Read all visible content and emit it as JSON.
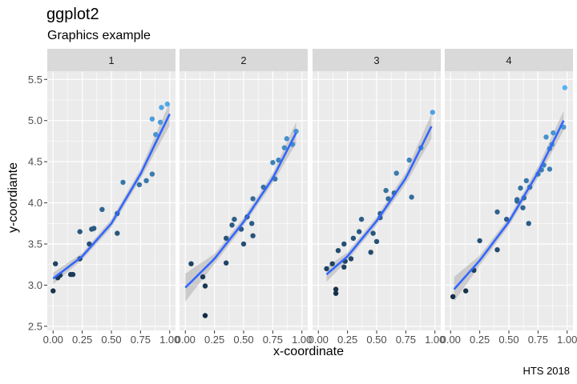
{
  "chart_data": {
    "type": "scatter",
    "title": "ggplot2",
    "subtitle": "Graphics example",
    "xlabel": "x-coordinate",
    "ylabel": "y-coordiante",
    "caption": "HTS 2018",
    "xlim": [
      -0.05,
      1.05
    ],
    "ylim": [
      2.45,
      5.6
    ],
    "xticks": [
      0.0,
      0.25,
      0.5,
      0.75,
      1.0
    ],
    "xtick_labels": [
      "0.00",
      "0.25",
      "0.50",
      "0.75",
      "1.00"
    ],
    "yticks": [
      2.5,
      3.0,
      3.5,
      4.0,
      4.5,
      5.0,
      5.5
    ],
    "ytick_labels": [
      "2.5",
      "3.0",
      "3.5",
      "4.0",
      "4.5",
      "5.0",
      "5.5"
    ],
    "grid": true,
    "smooth": "loess fit with confidence band",
    "color_scale": {
      "low": "#132B43",
      "high": "#56B1F7"
    },
    "line_color": "#3366FF",
    "band_color": "#999999",
    "panels": [
      {
        "label": "1",
        "fit": [
          [
            0.0,
            3.08
          ],
          [
            0.25,
            3.35
          ],
          [
            0.5,
            3.75
          ],
          [
            0.75,
            4.35
          ],
          [
            1.0,
            5.08
          ]
        ],
        "ci": [
          0.07,
          0.04,
          0.05,
          0.06,
          0.14
        ],
        "points": [
          [
            0.0,
            2.93
          ],
          [
            0.02,
            3.26
          ],
          [
            0.04,
            3.09
          ],
          [
            0.06,
            3.12
          ],
          [
            0.15,
            3.13
          ],
          [
            0.17,
            3.13
          ],
          [
            0.23,
            3.65
          ],
          [
            0.23,
            3.32
          ],
          [
            0.31,
            3.5
          ],
          [
            0.33,
            3.68
          ],
          [
            0.35,
            3.69
          ],
          [
            0.42,
            3.92
          ],
          [
            0.55,
            3.63
          ],
          [
            0.55,
            3.87
          ],
          [
            0.6,
            4.25
          ],
          [
            0.74,
            4.22
          ],
          [
            0.8,
            4.27
          ],
          [
            0.85,
            4.35
          ],
          [
            0.85,
            5.02
          ],
          [
            0.88,
            4.83
          ],
          [
            0.92,
            4.98
          ],
          [
            0.93,
            5.16
          ],
          [
            0.98,
            5.2
          ]
        ]
      },
      {
        "label": "2",
        "fit": [
          [
            0.0,
            2.97
          ],
          [
            0.25,
            3.32
          ],
          [
            0.5,
            3.77
          ],
          [
            0.75,
            4.3
          ],
          [
            0.95,
            4.85
          ]
        ],
        "ci": [
          0.17,
          0.06,
          0.05,
          0.06,
          0.13
        ],
        "points": [
          [
            0.05,
            3.26
          ],
          [
            0.15,
            3.1
          ],
          [
            0.17,
            2.99
          ],
          [
            0.17,
            2.63
          ],
          [
            0.35,
            3.57
          ],
          [
            0.35,
            3.27
          ],
          [
            0.4,
            3.73
          ],
          [
            0.42,
            3.8
          ],
          [
            0.48,
            3.68
          ],
          [
            0.5,
            3.5
          ],
          [
            0.53,
            3.83
          ],
          [
            0.57,
            3.75
          ],
          [
            0.58,
            4.05
          ],
          [
            0.58,
            3.6
          ],
          [
            0.67,
            4.19
          ],
          [
            0.75,
            4.49
          ],
          [
            0.77,
            4.29
          ],
          [
            0.8,
            4.52
          ],
          [
            0.85,
            4.67
          ],
          [
            0.87,
            4.78
          ],
          [
            0.92,
            4.71
          ],
          [
            0.95,
            4.87
          ]
        ]
      },
      {
        "label": "3",
        "fit": [
          [
            0.07,
            3.13
          ],
          [
            0.25,
            3.35
          ],
          [
            0.5,
            3.78
          ],
          [
            0.75,
            4.3
          ],
          [
            0.97,
            4.93
          ]
        ],
        "ci": [
          0.09,
          0.05,
          0.05,
          0.07,
          0.15
        ],
        "points": [
          [
            0.07,
            3.2
          ],
          [
            0.12,
            3.26
          ],
          [
            0.15,
            2.9
          ],
          [
            0.15,
            2.95
          ],
          [
            0.17,
            3.42
          ],
          [
            0.22,
            3.5
          ],
          [
            0.22,
            3.22
          ],
          [
            0.23,
            3.29
          ],
          [
            0.28,
            3.32
          ],
          [
            0.3,
            3.57
          ],
          [
            0.35,
            3.65
          ],
          [
            0.37,
            3.8
          ],
          [
            0.45,
            3.4
          ],
          [
            0.47,
            3.63
          ],
          [
            0.5,
            3.53
          ],
          [
            0.53,
            3.87
          ],
          [
            0.53,
            3.82
          ],
          [
            0.58,
            4.15
          ],
          [
            0.6,
            4.05
          ],
          [
            0.65,
            4.12
          ],
          [
            0.67,
            4.36
          ],
          [
            0.78,
            4.52
          ],
          [
            0.8,
            4.07
          ],
          [
            0.88,
            4.67
          ],
          [
            0.98,
            5.1
          ]
        ]
      },
      {
        "label": "4",
        "fit": [
          [
            0.03,
            2.95
          ],
          [
            0.25,
            3.3
          ],
          [
            0.5,
            3.77
          ],
          [
            0.75,
            4.37
          ],
          [
            0.97,
            5.0
          ]
        ],
        "ci": [
          0.15,
          0.06,
          0.05,
          0.07,
          0.12
        ],
        "points": [
          [
            0.02,
            2.86
          ],
          [
            0.13,
            2.93
          ],
          [
            0.2,
            3.18
          ],
          [
            0.25,
            3.54
          ],
          [
            0.4,
            3.43
          ],
          [
            0.4,
            3.89
          ],
          [
            0.48,
            3.8
          ],
          [
            0.57,
            4.04
          ],
          [
            0.57,
            4.02
          ],
          [
            0.6,
            4.18
          ],
          [
            0.62,
            3.94
          ],
          [
            0.63,
            4.06
          ],
          [
            0.65,
            4.27
          ],
          [
            0.67,
            3.75
          ],
          [
            0.68,
            4.19
          ],
          [
            0.75,
            4.35
          ],
          [
            0.78,
            4.4
          ],
          [
            0.8,
            4.46
          ],
          [
            0.82,
            4.8
          ],
          [
            0.85,
            4.66
          ],
          [
            0.85,
            4.41
          ],
          [
            0.87,
            4.71
          ],
          [
            0.88,
            4.85
          ],
          [
            0.97,
            4.92
          ],
          [
            0.98,
            5.4
          ]
        ]
      }
    ]
  }
}
